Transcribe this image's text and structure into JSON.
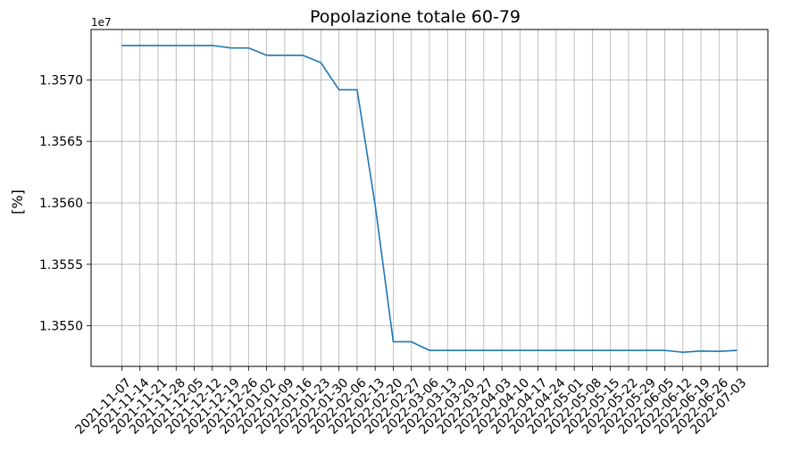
{
  "chart_data": {
    "type": "line",
    "title": "Popolazione totale 60-79",
    "xlabel": "",
    "ylabel": "[%]",
    "y_offset_label": "1e7",
    "grid": true,
    "legend": "none",
    "line_color": "#1f77b4",
    "ylim": [
      13546700,
      13574100
    ],
    "yticks": [
      13550000,
      13555000,
      13560000,
      13565000,
      13570000
    ],
    "ytick_labels": [
      "1.3550",
      "1.3555",
      "1.3560",
      "1.3565",
      "1.3570"
    ],
    "x": [
      "2021-11-07",
      "2021-11-14",
      "2021-11-21",
      "2021-11-28",
      "2021-12-05",
      "2021-12-12",
      "2021-12-19",
      "2021-12-26",
      "2022-01-02",
      "2022-01-09",
      "2022-01-16",
      "2022-01-23",
      "2022-01-30",
      "2022-02-06",
      "2022-02-13",
      "2022-02-20",
      "2022-02-27",
      "2022-03-06",
      "2022-03-13",
      "2022-03-20",
      "2022-03-27",
      "2022-04-03",
      "2022-04-10",
      "2022-04-17",
      "2022-04-24",
      "2022-05-01",
      "2022-05-08",
      "2022-05-15",
      "2022-05-22",
      "2022-05-29",
      "2022-06-05",
      "2022-06-12",
      "2022-06-19",
      "2022-06-26",
      "2022-07-03"
    ],
    "series": [
      {
        "values": [
          13572800,
          13572800,
          13572800,
          13572800,
          13572800,
          13572800,
          13572600,
          13572600,
          13572000,
          13572000,
          13572000,
          13571400,
          13569200,
          13569200,
          13559800,
          13548700,
          13548700,
          13548000,
          13548000,
          13548000,
          13548000,
          13548000,
          13548000,
          13548000,
          13548000,
          13548000,
          13548000,
          13548000,
          13548000,
          13548000,
          13548000,
          13547850,
          13547950,
          13547920,
          13548000
        ]
      }
    ]
  }
}
